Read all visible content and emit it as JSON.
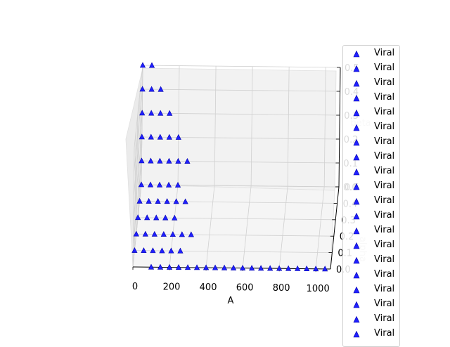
{
  "chart_data": {
    "type": "scatter",
    "projection": "3d",
    "xlabel": "A",
    "ylabel": "alpha",
    "zlabel": "beta",
    "x_ticks": [
      "0",
      "200",
      "400",
      "600",
      "800",
      "1000"
    ],
    "y_ticks": [
      "0.0",
      "0.1",
      "0.2",
      "0.3",
      "0.4",
      "0.5"
    ],
    "z_ticks": [
      "0.0",
      "0.1",
      "0.2",
      "0.3",
      "0.4",
      "0.5"
    ],
    "xlim": [
      0,
      1080
    ],
    "ylim": [
      0,
      0.5
    ],
    "zlim": [
      0,
      0.5
    ],
    "grid": true,
    "marker": "triangle",
    "marker_color": "#1f1fff",
    "marker_edge_color": "#0000aa",
    "legend_location": "right",
    "legend": [
      "Viral",
      "Viral",
      "Viral",
      "Viral",
      "Viral",
      "Viral",
      "Viral",
      "Viral",
      "Viral",
      "Viral",
      "Viral",
      "Viral",
      "Viral",
      "Viral",
      "Viral",
      "Viral",
      "Viral",
      "Viral",
      "Viral",
      "Viral"
    ],
    "series": [
      {
        "A": [
          100,
          150,
          200,
          250,
          300,
          350,
          400,
          450,
          500,
          550,
          600,
          650,
          700,
          750,
          800,
          850,
          900,
          950,
          1000,
          1050
        ],
        "alpha": 0.0,
        "beta": 0.0
      },
      {
        "A": [
          0,
          50,
          100,
          150,
          200,
          250
        ],
        "alpha": 0.1,
        "beta": 0.0
      },
      {
        "A": [
          0,
          50,
          100,
          150,
          200,
          250,
          300
        ],
        "alpha": 0.2,
        "beta": 0.0
      },
      {
        "A": [
          0,
          50,
          100,
          150,
          200
        ],
        "alpha": 0.3,
        "beta": 0.0
      },
      {
        "A": [
          0,
          50,
          100,
          150,
          200,
          250
        ],
        "alpha": 0.4,
        "beta": 0.0
      },
      {
        "A": [
          0,
          50,
          100,
          150,
          200
        ],
        "alpha": 0.5,
        "beta": 0.0
      },
      {
        "A": [
          0,
          50,
          100,
          150,
          200,
          250
        ],
        "alpha": 0.5,
        "beta": 0.1
      },
      {
        "A": [
          0,
          50,
          100,
          150,
          200
        ],
        "alpha": 0.5,
        "beta": 0.2
      },
      {
        "A": [
          0,
          50,
          100,
          150
        ],
        "alpha": 0.5,
        "beta": 0.3
      },
      {
        "A": [
          0,
          50,
          100
        ],
        "alpha": 0.5,
        "beta": 0.4
      },
      {
        "A": [
          0,
          50
        ],
        "alpha": 0.5,
        "beta": 0.5
      }
    ]
  }
}
